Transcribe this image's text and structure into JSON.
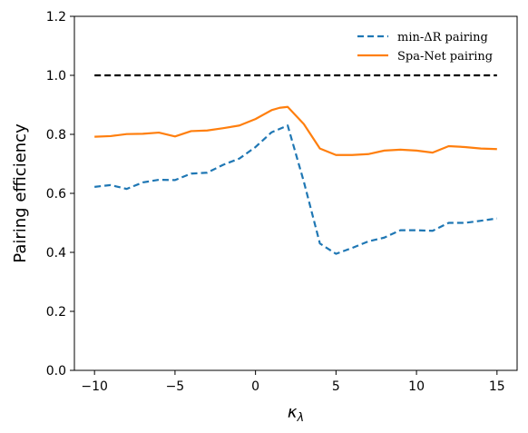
{
  "chart_data": {
    "type": "line",
    "xlabel": "κ",
    "xlabel_sub": "λ",
    "ylabel": "Pairing efficiency",
    "xlim": [
      -11.25,
      16.25
    ],
    "ylim": [
      0.0,
      1.2
    ],
    "xticks": [
      -10,
      -5,
      0,
      5,
      10,
      15
    ],
    "xtick_labels": [
      "−10",
      "−5",
      "0",
      "5",
      "10",
      "15"
    ],
    "yticks": [
      0.0,
      0.2,
      0.4,
      0.6,
      0.8,
      1.0,
      1.2
    ],
    "ytick_labels": [
      "0.0",
      "0.2",
      "0.4",
      "0.6",
      "0.8",
      "1.0",
      "1.2"
    ],
    "grid": false,
    "legend_position": "top-right",
    "reference_line": {
      "y": 1.0,
      "x_range": [
        -10,
        15
      ],
      "color": "#000000",
      "style": "dashed"
    },
    "series": [
      {
        "name": "min-ΔR pairing",
        "color": "#1f77b4",
        "style": "dashed",
        "x": [
          -10,
          -9,
          -8,
          -7,
          -6,
          -5,
          -4,
          -3,
          -2,
          -1,
          0,
          1,
          2,
          3,
          4,
          5,
          6,
          7,
          8,
          9,
          10,
          11,
          12,
          13,
          14,
          15
        ],
        "y": [
          0.622,
          0.628,
          0.615,
          0.637,
          0.646,
          0.645,
          0.667,
          0.67,
          0.697,
          0.718,
          0.757,
          0.807,
          0.83,
          0.64,
          0.43,
          0.395,
          0.415,
          0.437,
          0.45,
          0.475,
          0.475,
          0.473,
          0.5,
          0.5,
          0.507,
          0.515
        ]
      },
      {
        "name": "Spa-Net pairing",
        "color": "#ff7f0e",
        "style": "solid",
        "x": [
          -10,
          -9,
          -8,
          -7,
          -6,
          -5,
          -4,
          -3,
          -2,
          -1,
          0,
          1,
          1.5,
          2,
          3,
          4,
          5,
          6,
          7,
          8,
          9,
          10,
          11,
          12,
          13,
          14,
          15
        ],
        "y": [
          0.792,
          0.794,
          0.801,
          0.802,
          0.806,
          0.793,
          0.811,
          0.813,
          0.821,
          0.83,
          0.852,
          0.882,
          0.89,
          0.893,
          0.835,
          0.752,
          0.73,
          0.73,
          0.733,
          0.745,
          0.748,
          0.745,
          0.738,
          0.76,
          0.757,
          0.752,
          0.75
        ]
      }
    ]
  }
}
